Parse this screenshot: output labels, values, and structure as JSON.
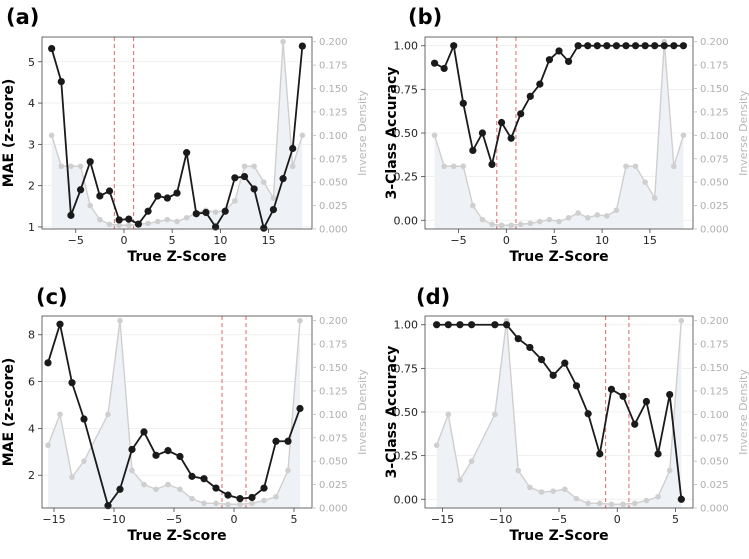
{
  "chart_data": [
    {
      "panel": "(a)",
      "type": "line",
      "xlabel": "True Z-Score",
      "ylabel": "MAE (z-score)",
      "y2label": "Inverse Density",
      "xlim": [
        -8.5,
        19.5
      ],
      "ylim": [
        0.95,
        5.6
      ],
      "y2lim": [
        0,
        0.205
      ],
      "xticks": [
        -5,
        0,
        5,
        10,
        15
      ],
      "yticks": [
        1,
        2,
        3,
        4,
        5
      ],
      "y2ticks": [
        0.0,
        0.025,
        0.05,
        0.075,
        0.1,
        0.125,
        0.15,
        0.175,
        0.2
      ],
      "y2tick_labels": [
        "0.000",
        "0.025",
        "0.050",
        "0.075",
        "0.100",
        "0.125",
        "0.150",
        "0.175",
        "0.200"
      ],
      "vlines": [
        -1,
        1
      ],
      "colors": {
        "main": "#1a1a1a",
        "density": "#cfcfcf",
        "fill": "#eef1f6",
        "vline": "#e06666"
      },
      "x": [
        -7.5,
        -6.5,
        -5.5,
        -4.5,
        -3.5,
        -2.5,
        -1.5,
        -0.5,
        0.5,
        1.5,
        2.5,
        3.5,
        4.5,
        5.5,
        6.5,
        7.5,
        8.5,
        9.5,
        10.5,
        11.5,
        12.5,
        13.5,
        14.5,
        15.5,
        16.5,
        17.5,
        18.5
      ],
      "series": [
        {
          "values": [
            5.32,
            4.52,
            1.28,
            1.9,
            2.58,
            1.75,
            1.87,
            1.17,
            1.19,
            1.07,
            1.38,
            1.75,
            1.7,
            1.82,
            2.8,
            1.32,
            1.35,
            1.0,
            1.38,
            2.19,
            2.22,
            1.92,
            0.97,
            1.42,
            2.17,
            2.9,
            5.38
          ]
        },
        {
          "values": [
            0.1,
            0.067,
            0.067,
            0.067,
            0.025,
            0.01,
            0.005,
            0.004,
            0.004,
            0.005,
            0.006,
            0.008,
            0.01,
            0.008,
            0.012,
            0.017,
            0.02,
            0.018,
            0.02,
            0.03,
            0.067,
            0.067,
            0.05,
            0.033,
            0.2,
            0.067,
            0.1
          ]
        }
      ]
    },
    {
      "panel": "(b)",
      "type": "line",
      "xlabel": "True Z-Score",
      "ylabel": "3-Class Accuracy",
      "y2label": "Inverse Density",
      "xlim": [
        -8.5,
        19.5
      ],
      "ylim": [
        -0.05,
        1.05
      ],
      "y2lim": [
        0,
        0.205
      ],
      "xticks": [
        -5,
        0,
        5,
        10,
        15
      ],
      "yticks": [
        0.0,
        0.25,
        0.5,
        0.75,
        1.0
      ],
      "ytick_labels": [
        "0.00",
        "0.25",
        "0.50",
        "0.75",
        "1.00"
      ],
      "y2ticks": [
        0.0,
        0.025,
        0.05,
        0.075,
        0.1,
        0.125,
        0.15,
        0.175,
        0.2
      ],
      "y2tick_labels": [
        "0.000",
        "0.025",
        "0.050",
        "0.075",
        "0.100",
        "0.125",
        "0.150",
        "0.175",
        "0.200"
      ],
      "vlines": [
        -1,
        1
      ],
      "colors": {
        "main": "#1a1a1a",
        "density": "#cfcfcf",
        "fill": "#eef1f6",
        "vline": "#e06666"
      },
      "x": [
        -7.5,
        -6.5,
        -5.5,
        -4.5,
        -3.5,
        -2.5,
        -1.5,
        -0.5,
        0.5,
        1.5,
        2.5,
        3.5,
        4.5,
        5.5,
        6.5,
        7.5,
        8.5,
        9.5,
        10.5,
        11.5,
        12.5,
        13.5,
        14.5,
        15.5,
        16.5,
        17.5,
        18.5
      ],
      "series": [
        {
          "values": [
            0.9,
            0.87,
            1.0,
            0.67,
            0.4,
            0.5,
            0.32,
            0.56,
            0.47,
            0.61,
            0.71,
            0.78,
            0.92,
            0.97,
            0.91,
            1.0,
            1.0,
            1.0,
            1.0,
            1.0,
            1.0,
            1.0,
            1.0,
            1.0,
            1.0,
            1.0,
            1.0
          ]
        },
        {
          "values": [
            0.1,
            0.067,
            0.067,
            0.067,
            0.025,
            0.01,
            0.005,
            0.004,
            0.004,
            0.005,
            0.006,
            0.008,
            0.01,
            0.008,
            0.012,
            0.017,
            0.012,
            0.015,
            0.014,
            0.02,
            0.067,
            0.067,
            0.05,
            0.033,
            0.2,
            0.067,
            0.1
          ]
        }
      ]
    },
    {
      "panel": "(c)",
      "type": "line",
      "xlabel": "True Z-Score",
      "ylabel": "MAE (z-score)",
      "y2label": "Inverse Density",
      "xlim": [
        -16.0,
        6.5
      ],
      "ylim": [
        0.6,
        8.8
      ],
      "y2lim": [
        0,
        0.205
      ],
      "xticks": [
        -15,
        -10,
        -5,
        0,
        5
      ],
      "yticks": [
        2,
        4,
        6,
        8
      ],
      "y2ticks": [
        0.0,
        0.025,
        0.05,
        0.075,
        0.1,
        0.125,
        0.15,
        0.175,
        0.2
      ],
      "y2tick_labels": [
        "0.000",
        "0.025",
        "0.050",
        "0.075",
        "0.100",
        "0.125",
        "0.150",
        "0.175",
        "0.200"
      ],
      "vlines": [
        -1,
        1
      ],
      "colors": {
        "main": "#1a1a1a",
        "density": "#cfcfcf",
        "fill": "#eef1f6",
        "vline": "#e06666"
      },
      "x": [
        -15.5,
        -14.5,
        -13.5,
        -12.5,
        -10.5,
        -9.5,
        -8.5,
        -7.5,
        -6.5,
        -5.5,
        -4.5,
        -3.5,
        -2.5,
        -1.5,
        -0.5,
        0.5,
        1.5,
        2.5,
        3.5,
        4.5,
        5.5
      ],
      "series": [
        {
          "values": [
            6.8,
            8.45,
            5.95,
            4.4,
            0.7,
            1.4,
            3.1,
            3.85,
            2.85,
            3.05,
            2.8,
            1.95,
            1.85,
            1.45,
            1.15,
            1.0,
            1.05,
            1.45,
            3.45,
            3.45,
            4.85
          ]
        },
        {
          "values": [
            0.067,
            0.1,
            0.033,
            0.05,
            0.1,
            0.2,
            0.04,
            0.025,
            0.02,
            0.025,
            0.02,
            0.01,
            0.005,
            0.005,
            0.004,
            0.004,
            0.005,
            0.008,
            0.012,
            0.04,
            0.2
          ]
        }
      ]
    },
    {
      "panel": "(d)",
      "type": "line",
      "xlabel": "True Z-Score",
      "ylabel": "3-Class Accuracy",
      "y2label": "Inverse Density",
      "xlim": [
        -16.5,
        6.5
      ],
      "ylim": [
        -0.05,
        1.05
      ],
      "y2lim": [
        0,
        0.205
      ],
      "xticks": [
        -15,
        -10,
        -5,
        0,
        5
      ],
      "yticks": [
        0.0,
        0.25,
        0.5,
        0.75,
        1.0
      ],
      "ytick_labels": [
        "0.00",
        "0.25",
        "0.50",
        "0.75",
        "1.00"
      ],
      "y2ticks": [
        0.0,
        0.025,
        0.05,
        0.075,
        0.1,
        0.125,
        0.15,
        0.175,
        0.2
      ],
      "y2tick_labels": [
        "0.000",
        "0.025",
        "0.050",
        "0.075",
        "0.100",
        "0.125",
        "0.150",
        "0.175",
        "0.200"
      ],
      "vlines": [
        -1,
        1
      ],
      "colors": {
        "main": "#1a1a1a",
        "density": "#cfcfcf",
        "fill": "#eef1f6",
        "vline": "#e06666"
      },
      "x": [
        -15.5,
        -14.5,
        -13.5,
        -12.5,
        -10.5,
        -9.5,
        -8.5,
        -7.5,
        -6.5,
        -5.5,
        -4.5,
        -3.5,
        -2.5,
        -1.5,
        -0.5,
        0.5,
        1.5,
        2.5,
        3.5,
        4.5,
        5.5
      ],
      "series": [
        {
          "values": [
            1.0,
            1.0,
            1.0,
            1.0,
            1.0,
            1.0,
            0.92,
            0.87,
            0.8,
            0.71,
            0.78,
            0.65,
            0.49,
            0.26,
            0.63,
            0.59,
            0.43,
            0.56,
            0.26,
            0.6,
            0.0
          ]
        },
        {
          "values": [
            0.067,
            0.1,
            0.03,
            0.05,
            0.1,
            0.2,
            0.04,
            0.022,
            0.017,
            0.018,
            0.02,
            0.01,
            0.005,
            0.005,
            0.004,
            0.004,
            0.005,
            0.008,
            0.012,
            0.04,
            0.2
          ]
        }
      ]
    }
  ]
}
